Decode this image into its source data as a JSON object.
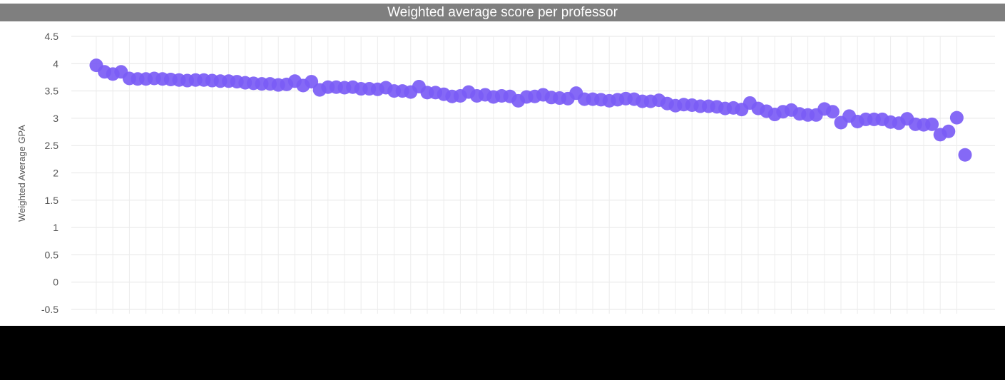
{
  "chart_data": {
    "type": "scatter",
    "title": "Weighted average score per professor",
    "xlabel": "",
    "ylabel": "Weighted Average GPA",
    "ylim": [
      -0.5,
      4.5
    ],
    "yticks": [
      "-0.5",
      "0",
      "0.5",
      "1",
      "1.5",
      "2",
      "2.5",
      "3",
      "3.5",
      "4",
      "4.5"
    ],
    "grid": true,
    "legend": "none",
    "point_color": "#7b5cf5",
    "title_bar_color": "#7f7f7f",
    "values": [
      3.97,
      3.85,
      3.81,
      3.85,
      3.73,
      3.72,
      3.72,
      3.73,
      3.72,
      3.71,
      3.7,
      3.69,
      3.7,
      3.7,
      3.69,
      3.68,
      3.68,
      3.67,
      3.65,
      3.64,
      3.63,
      3.63,
      3.61,
      3.62,
      3.68,
      3.6,
      3.67,
      3.52,
      3.57,
      3.57,
      3.56,
      3.57,
      3.54,
      3.54,
      3.53,
      3.56,
      3.5,
      3.5,
      3.48,
      3.58,
      3.47,
      3.47,
      3.44,
      3.4,
      3.41,
      3.48,
      3.41,
      3.43,
      3.39,
      3.41,
      3.4,
      3.32,
      3.39,
      3.4,
      3.43,
      3.38,
      3.37,
      3.36,
      3.46,
      3.35,
      3.35,
      3.34,
      3.32,
      3.34,
      3.36,
      3.35,
      3.31,
      3.31,
      3.33,
      3.27,
      3.23,
      3.25,
      3.24,
      3.22,
      3.22,
      3.21,
      3.18,
      3.19,
      3.16,
      3.28,
      3.18,
      3.13,
      3.07,
      3.12,
      3.15,
      3.08,
      3.06,
      3.06,
      3.17,
      3.12,
      2.92,
      3.04,
      2.94,
      2.98,
      2.98,
      2.98,
      2.93,
      2.91,
      2.99,
      2.89,
      2.88,
      2.89,
      2.7,
      2.76,
      3.01,
      2.33
    ]
  }
}
